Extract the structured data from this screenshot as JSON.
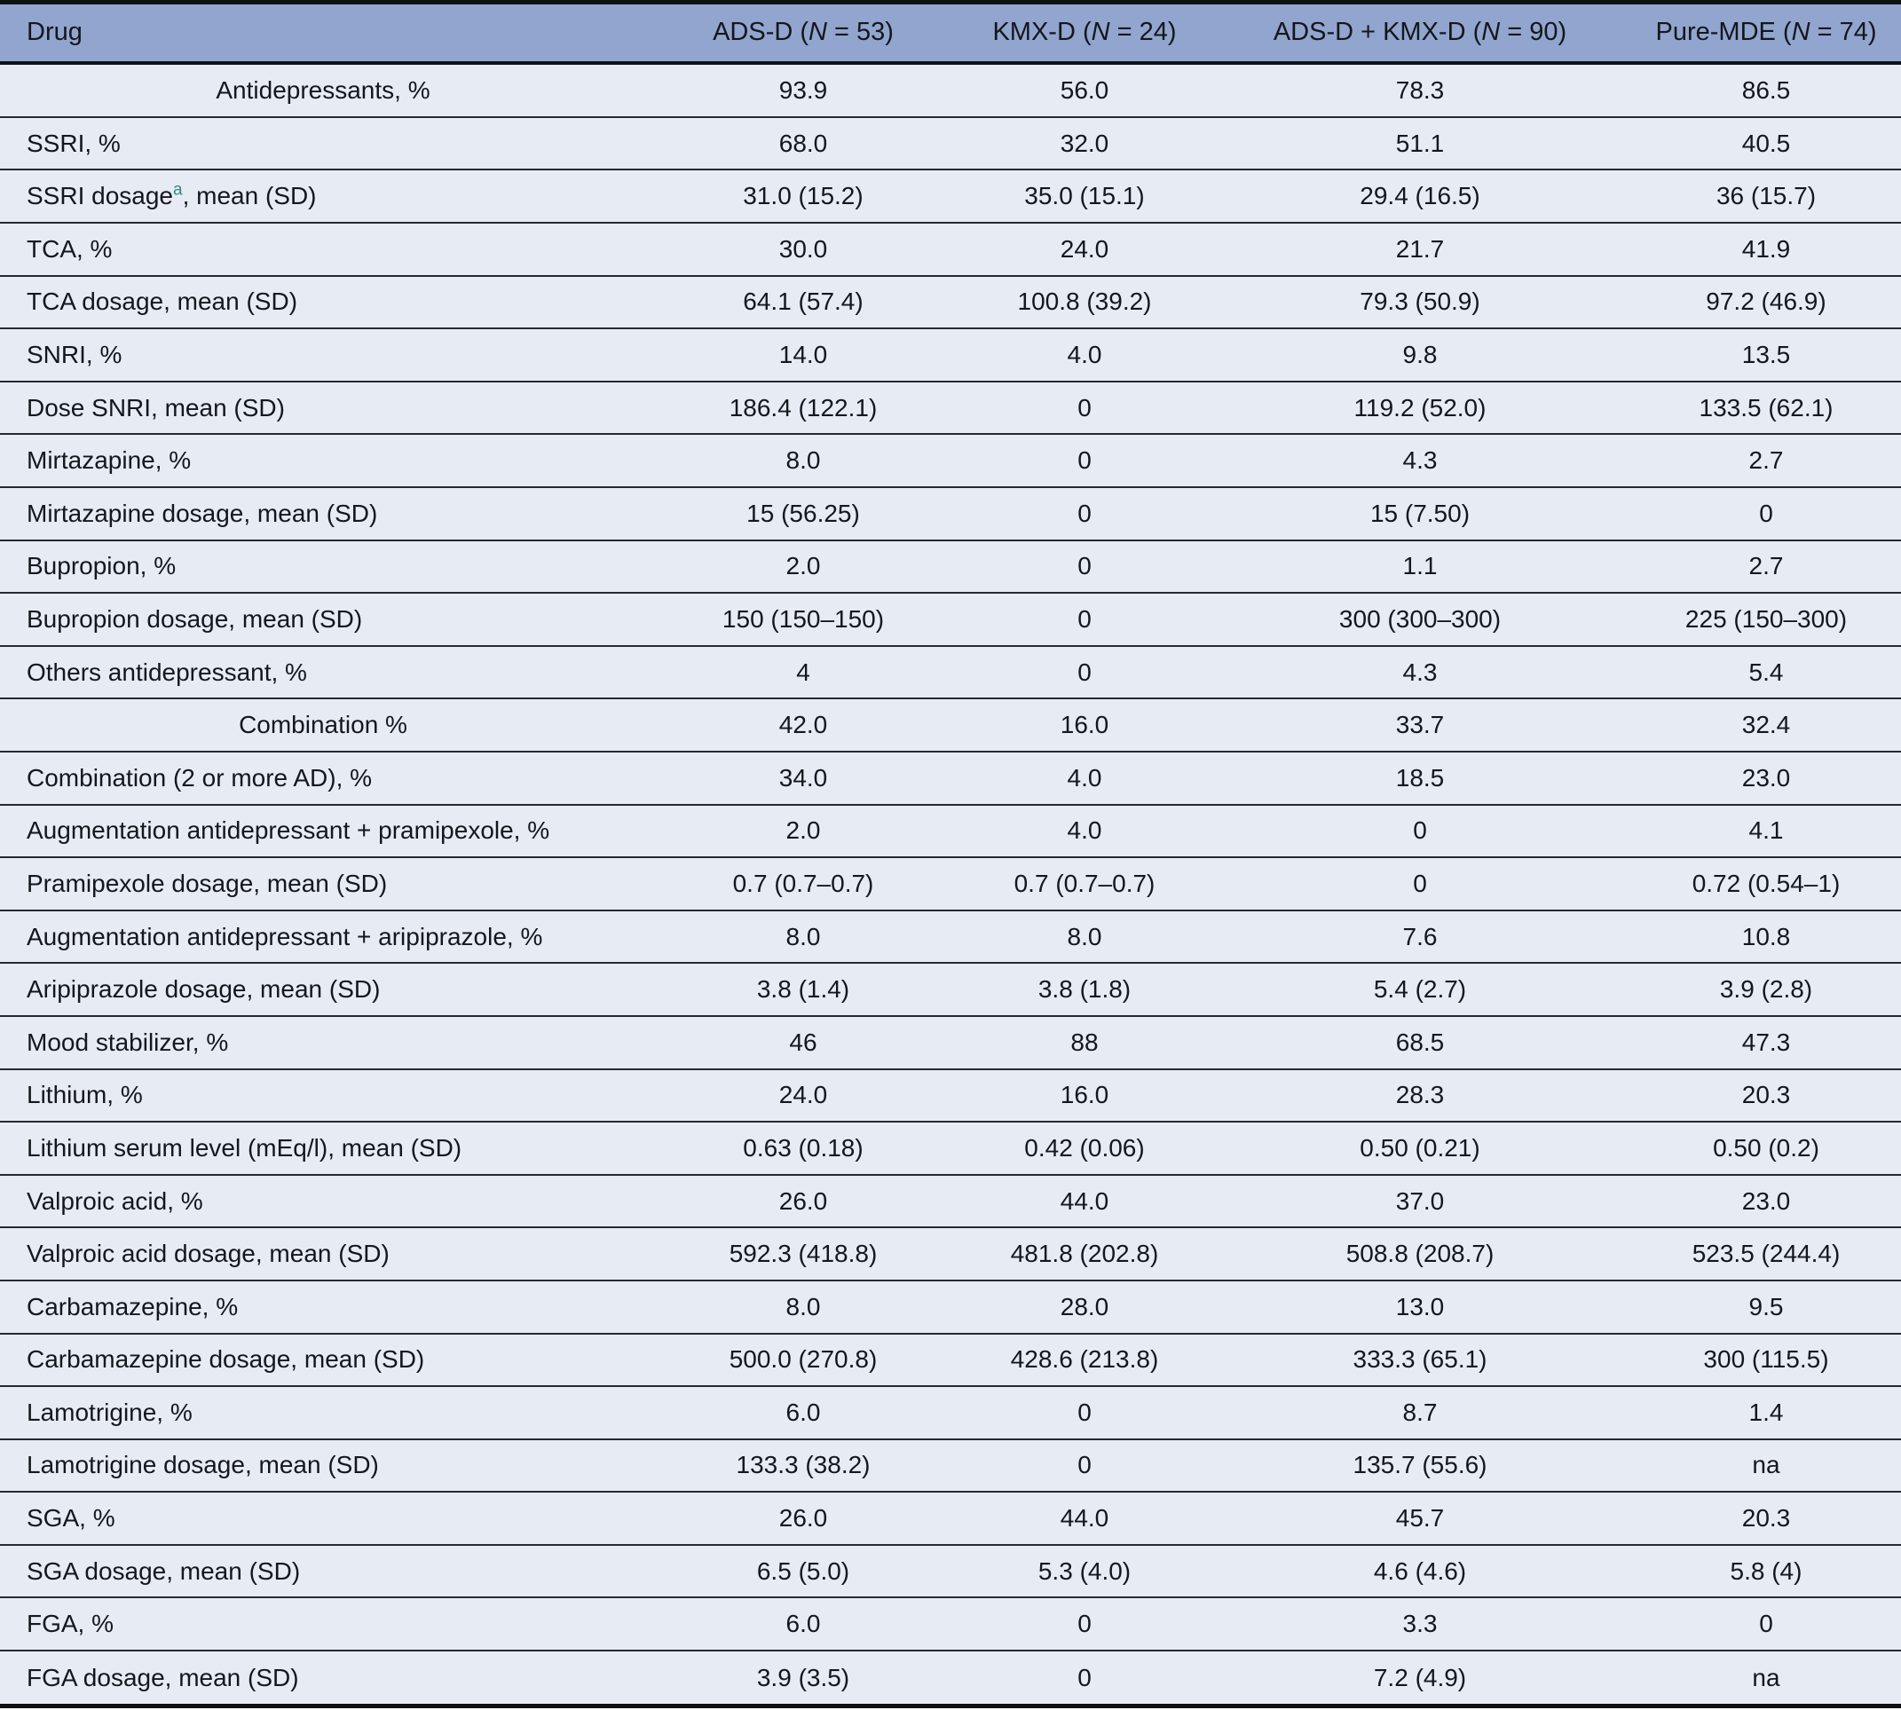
{
  "table": {
    "header": {
      "drug_label": "Drug",
      "group_labels": [
        "ADS-D (N = 53)",
        "KMX-D (N = 24)",
        "ADS-D + KMX-D (N = 90)",
        "Pure-MDE (N = 74)"
      ]
    },
    "colors": {
      "header_bg": "#91a5ce",
      "row_bg": "#e7ebf4",
      "rule": "#26292e",
      "heavy_rule": "#0d0f12",
      "text": "#14171c",
      "footnote_marker": "#2e8b8b"
    },
    "footnote_marker": "a",
    "rows": [
      {
        "label": "Antidepressants, %",
        "align": "center",
        "values": [
          "93.9",
          "56.0",
          "78.3",
          "86.5"
        ]
      },
      {
        "label": "SSRI, %",
        "values": [
          "68.0",
          "32.0",
          "51.1",
          "40.5"
        ]
      },
      {
        "label": "SSRI dosage^a, mean (SD)",
        "values": [
          "31.0 (15.2)",
          "35.0 (15.1)",
          "29.4 (16.5)",
          "36 (15.7)"
        ]
      },
      {
        "label": "TCA, %",
        "values": [
          "30.0",
          "24.0",
          "21.7",
          "41.9"
        ]
      },
      {
        "label": "TCA dosage, mean (SD)",
        "values": [
          "64.1 (57.4)",
          "100.8 (39.2)",
          "79.3 (50.9)",
          "97.2 (46.9)"
        ]
      },
      {
        "label": "SNRI, %",
        "values": [
          "14.0",
          "4.0",
          "9.8",
          "13.5"
        ]
      },
      {
        "label": "Dose SNRI, mean (SD)",
        "values": [
          "186.4 (122.1)",
          "0",
          "119.2 (52.0)",
          "133.5 (62.1)"
        ]
      },
      {
        "label": "Mirtazapine, %",
        "values": [
          "8.0",
          "0",
          "4.3",
          "2.7"
        ]
      },
      {
        "label": "Mirtazapine dosage, mean (SD)",
        "values": [
          "15 (56.25)",
          "0",
          "15 (7.50)",
          "0"
        ]
      },
      {
        "label": "Bupropion, %",
        "values": [
          "2.0",
          "0",
          "1.1",
          "2.7"
        ]
      },
      {
        "label": "Bupropion dosage, mean (SD)",
        "values": [
          "150 (150–150)",
          "0",
          "300 (300–300)",
          "225 (150–300)"
        ]
      },
      {
        "label": "Others antidepressant, %",
        "values": [
          "4",
          "0",
          "4.3",
          "5.4"
        ]
      },
      {
        "label": "Combination %",
        "align": "center",
        "values": [
          "42.0",
          "16.0",
          "33.7",
          "32.4"
        ]
      },
      {
        "label": "Combination (2 or more AD), %",
        "values": [
          "34.0",
          "4.0",
          "18.5",
          "23.0"
        ]
      },
      {
        "label": "Augmentation antidepressant + pramipexole, %",
        "values": [
          "2.0",
          "4.0",
          "0",
          "4.1"
        ]
      },
      {
        "label": "Pramipexole dosage, mean (SD)",
        "values": [
          "0.7 (0.7–0.7)",
          "0.7 (0.7–0.7)",
          "0",
          "0.72 (0.54–1)"
        ]
      },
      {
        "label": "Augmentation antidepressant + aripiprazole, %",
        "values": [
          "8.0",
          "8.0",
          "7.6",
          "10.8"
        ]
      },
      {
        "label": "Aripiprazole dosage, mean (SD)",
        "values": [
          "3.8 (1.4)",
          "3.8 (1.8)",
          "5.4 (2.7)",
          "3.9 (2.8)"
        ]
      },
      {
        "label": "Mood stabilizer, %",
        "values": [
          "46",
          "88",
          "68.5",
          "47.3"
        ]
      },
      {
        "label": "Lithium, %",
        "values": [
          "24.0",
          "16.0",
          "28.3",
          "20.3"
        ]
      },
      {
        "label": "Lithium serum level (mEq/l), mean (SD)",
        "values": [
          "0.63 (0.18)",
          "0.42 (0.06)",
          "0.50 (0.21)",
          "0.50 (0.2)"
        ]
      },
      {
        "label": "Valproic acid, %",
        "values": [
          "26.0",
          "44.0",
          "37.0",
          "23.0"
        ]
      },
      {
        "label": "Valproic acid dosage, mean (SD)",
        "values": [
          "592.3 (418.8)",
          "481.8 (202.8)",
          "508.8 (208.7)",
          "523.5 (244.4)"
        ]
      },
      {
        "label": "Carbamazepine, %",
        "values": [
          "8.0",
          "28.0",
          "13.0",
          "9.5"
        ]
      },
      {
        "label": "Carbamazepine dosage, mean (SD)",
        "values": [
          "500.0 (270.8)",
          "428.6 (213.8)",
          "333.3 (65.1)",
          "300 (115.5)"
        ]
      },
      {
        "label": "Lamotrigine, %",
        "values": [
          "6.0",
          "0",
          "8.7",
          "1.4"
        ]
      },
      {
        "label": "Lamotrigine dosage, mean (SD)",
        "values": [
          "133.3 (38.2)",
          "0",
          "135.7 (55.6)",
          "na"
        ]
      },
      {
        "label": "SGA, %",
        "values": [
          "26.0",
          "44.0",
          "45.7",
          "20.3"
        ]
      },
      {
        "label": "SGA dosage, mean (SD)",
        "values": [
          "6.5 (5.0)",
          "5.3 (4.0)",
          "4.6 (4.6)",
          "5.8 (4)"
        ]
      },
      {
        "label": "FGA, %",
        "values": [
          "6.0",
          "0",
          "3.3",
          "0"
        ]
      },
      {
        "label": "FGA dosage, mean (SD)",
        "values": [
          "3.9 (3.5)",
          "0",
          "7.2 (4.9)",
          "na"
        ]
      }
    ]
  }
}
